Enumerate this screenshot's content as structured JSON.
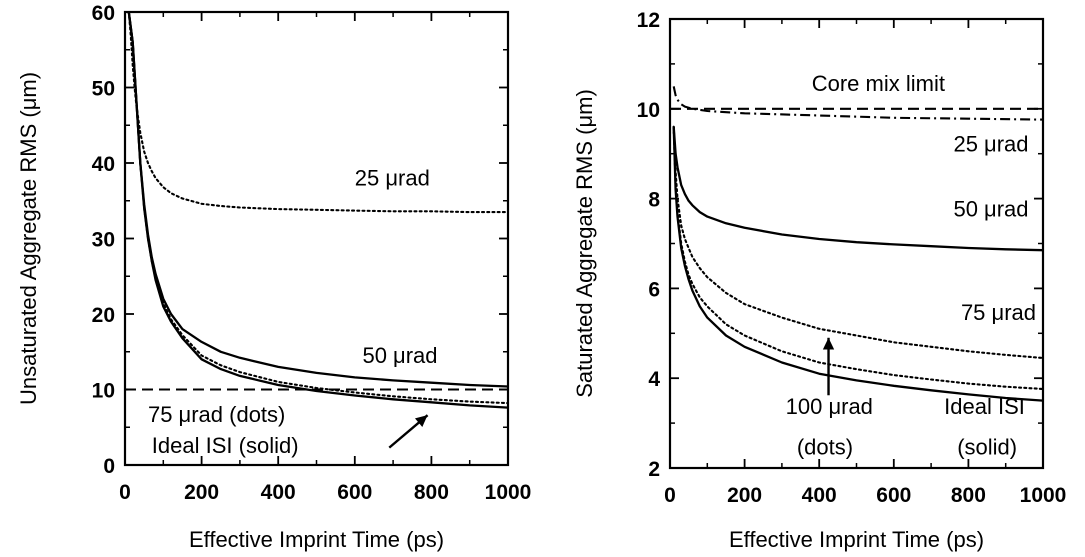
{
  "chart_data": [
    {
      "type": "line",
      "xlabel": "Effective Imprint Time (ps)",
      "ylabel": "Unsaturated Aggregate RMS (μm)",
      "xlim": [
        0,
        1000
      ],
      "ylim": [
        0,
        60
      ],
      "xticks": [
        "0",
        "200",
        "400",
        "600",
        "800",
        "1000"
      ],
      "yticks": [
        "0",
        "10",
        "20",
        "30",
        "40",
        "50",
        "60"
      ],
      "grid": false,
      "series": [
        {
          "key": "ideal-isi",
          "style": "solid",
          "x": [
            10,
            20,
            30,
            40,
            50,
            60,
            70,
            80,
            100,
            120,
            150,
            200,
            250,
            300,
            400,
            500,
            600,
            700,
            800,
            900,
            1000
          ],
          "y": [
            60,
            56,
            48,
            40,
            34,
            30,
            27,
            24.5,
            21,
            19,
            16.8,
            14,
            12.7,
            11.8,
            10.6,
            9.8,
            9.2,
            8.7,
            8.3,
            7.9,
            7.6
          ]
        },
        {
          "key": "75-urad",
          "style": "dotted",
          "x": [
            10,
            20,
            30,
            40,
            50,
            60,
            70,
            80,
            100,
            120,
            150,
            200,
            250,
            300,
            400,
            500,
            600,
            700,
            800,
            900,
            1000
          ],
          "y": [
            60,
            56,
            48,
            40,
            34,
            30,
            27,
            24.8,
            21.4,
            19.3,
            17.2,
            14.5,
            13.2,
            12.3,
            11,
            10.2,
            9.6,
            9.1,
            8.7,
            8.4,
            8.2
          ]
        },
        {
          "key": "50-urad",
          "style": "solid",
          "x": [
            10,
            20,
            30,
            40,
            50,
            60,
            70,
            80,
            100,
            120,
            150,
            200,
            250,
            300,
            400,
            500,
            600,
            700,
            800,
            900,
            1000
          ],
          "y": [
            60,
            56,
            48,
            40,
            34.5,
            30.5,
            27.5,
            25.3,
            22,
            20,
            18,
            16.3,
            15,
            14.2,
            13,
            12.2,
            11.6,
            11.2,
            10.9,
            10.6,
            10.4
          ]
        },
        {
          "key": "25-urad",
          "style": "dotted",
          "x": [
            10,
            15,
            20,
            25,
            30,
            40,
            50,
            60,
            70,
            80,
            100,
            120,
            150,
            200,
            250,
            300,
            400,
            500,
            600,
            700,
            800,
            900,
            1000
          ],
          "y": [
            60,
            57,
            53,
            50,
            47.5,
            44,
            41.5,
            40,
            38.9,
            38,
            36.8,
            36,
            35.3,
            34.6,
            34.3,
            34.1,
            33.9,
            33.8,
            33.7,
            33.6,
            33.6,
            33.5,
            33.5
          ]
        },
        {
          "key": "limit",
          "style": "dashed",
          "x": [
            0,
            1000
          ],
          "y": [
            10,
            10
          ]
        }
      ],
      "annotations": [
        {
          "text": "25 μrad",
          "x": 600,
          "y": 37
        },
        {
          "text": "50 μrad",
          "x": 620,
          "y": 13.5
        },
        {
          "text": "75 μrad (dots)",
          "x": 60,
          "y": 5.7
        },
        {
          "text": "Ideal ISI (solid)",
          "x": 70,
          "y": 1.6
        }
      ],
      "arrow": {
        "from": [
          690,
          2.3
        ],
        "to": [
          790,
          6.6
        ]
      }
    },
    {
      "type": "line",
      "xlabel": "Effective Imprint Time (ps)",
      "ylabel": "Saturated Aggregate RMS (μm)",
      "xlim": [
        0,
        1000
      ],
      "ylim": [
        2,
        12
      ],
      "xticks": [
        "0",
        "200",
        "400",
        "600",
        "800",
        "1000"
      ],
      "yticks": [
        "2",
        "4",
        "6",
        "8",
        "10",
        "12"
      ],
      "grid": false,
      "series": [
        {
          "key": "core-mix-limit",
          "style": "dashed",
          "x": [
            0,
            1000
          ],
          "y": [
            10,
            10
          ]
        },
        {
          "key": "25-urad",
          "style": "dash-dot",
          "x": [
            10,
            15,
            20,
            30,
            40,
            60,
            100,
            200,
            400,
            600,
            800,
            1000
          ],
          "y": [
            10.5,
            10.3,
            10.2,
            10.1,
            10.05,
            10.0,
            9.95,
            9.9,
            9.85,
            9.8,
            9.78,
            9.76
          ]
        },
        {
          "key": "50-urad",
          "style": "solid",
          "x": [
            10,
            15,
            20,
            30,
            40,
            50,
            60,
            80,
            100,
            150,
            200,
            300,
            400,
            500,
            600,
            700,
            800,
            900,
            1000
          ],
          "y": [
            9.6,
            9.0,
            8.7,
            8.3,
            8.1,
            7.95,
            7.85,
            7.7,
            7.6,
            7.45,
            7.35,
            7.2,
            7.1,
            7.03,
            6.98,
            6.94,
            6.9,
            6.87,
            6.85
          ]
        },
        {
          "key": "75-urad",
          "style": "dotted",
          "x": [
            10,
            15,
            20,
            30,
            40,
            50,
            60,
            80,
            100,
            150,
            200,
            300,
            400,
            500,
            600,
            700,
            800,
            900,
            1000
          ],
          "y": [
            9.6,
            8.6,
            8.0,
            7.4,
            7.1,
            6.9,
            6.7,
            6.45,
            6.25,
            5.9,
            5.65,
            5.35,
            5.1,
            4.95,
            4.8,
            4.7,
            4.6,
            4.52,
            4.45
          ]
        },
        {
          "key": "100-urad",
          "style": "dotted",
          "x": [
            10,
            15,
            20,
            30,
            40,
            50,
            60,
            80,
            100,
            150,
            200,
            300,
            400,
            500,
            600,
            700,
            800,
            900,
            1000
          ],
          "y": [
            9.6,
            8.3,
            7.7,
            7.0,
            6.6,
            6.3,
            6.1,
            5.8,
            5.6,
            5.2,
            4.95,
            4.6,
            4.35,
            4.2,
            4.07,
            3.97,
            3.88,
            3.81,
            3.76
          ]
        },
        {
          "key": "ideal-isi",
          "style": "solid",
          "x": [
            10,
            15,
            20,
            30,
            40,
            50,
            60,
            80,
            100,
            150,
            200,
            300,
            400,
            500,
            600,
            700,
            800,
            900,
            1000
          ],
          "y": [
            9.6,
            8.2,
            7.6,
            6.9,
            6.5,
            6.2,
            5.95,
            5.6,
            5.35,
            4.95,
            4.7,
            4.35,
            4.1,
            3.95,
            3.83,
            3.73,
            3.64,
            3.56,
            3.5
          ]
        }
      ],
      "annotations": [
        {
          "text": "Core mix limit",
          "x": 380,
          "y": 10.4
        },
        {
          "text": "25 μrad",
          "x": 760,
          "y": 9.05
        },
        {
          "text": "50 μrad",
          "x": 760,
          "y": 7.6
        },
        {
          "text": "75 μrad",
          "x": 780,
          "y": 5.3
        },
        {
          "text": "100 μrad",
          "x": 310,
          "y": 3.2
        },
        {
          "text": "(dots)",
          "x": 340,
          "y": 2.3
        },
        {
          "text": "Ideal ISI",
          "x": 735,
          "y": 3.2
        },
        {
          "text": "(solid)",
          "x": 770,
          "y": 2.3
        }
      ],
      "arrow": {
        "from": [
          425,
          3.62
        ],
        "to": [
          425,
          4.9
        ]
      }
    }
  ]
}
